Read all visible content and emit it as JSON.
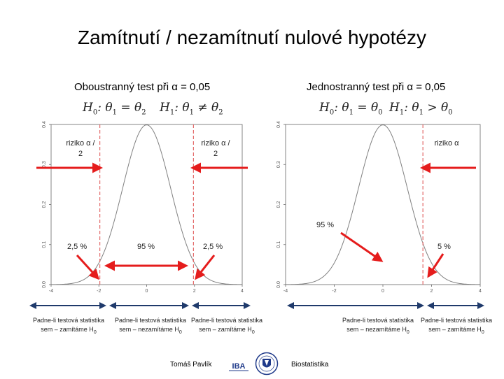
{
  "title": "Zamítnutí / nezamítnutí nulové hypotézy",
  "left": {
    "subtitle": "Oboustranný test při α = 0,05",
    "h0": {
      "name": "H",
      "idx": "0",
      "expr": ": θ",
      "t1": "1",
      "rel": " = θ",
      "t2": "2"
    },
    "h1": {
      "name": "H",
      "idx": "1",
      "expr": ": θ",
      "t1": "1",
      "rel": " ≠ θ",
      "t2": "2"
    },
    "risk_left": "riziko α / 2",
    "risk_right": "riziko α / 2",
    "pct_left": "2,5 %",
    "pct_mid": "95 %",
    "pct_right": "2,5 %",
    "cap_left": {
      "text": "Padne-li testová statistika sem – zamítáme H",
      "sub": "0"
    },
    "cap_mid": {
      "text": "Padne-li testová statistika sem – nezamítáme H",
      "sub": "0"
    },
    "cap_right": {
      "text": "Padne-li testová statistika sem – zamítáme H",
      "sub": "0"
    }
  },
  "right": {
    "subtitle": "Jednostranný test při α = 0,05",
    "h0": {
      "name": "H",
      "idx": "0",
      "expr": ": θ",
      "t1": "1",
      "rel": " = θ",
      "t2": "0"
    },
    "h1": {
      "name": "H",
      "idx": "1",
      "expr": ": θ",
      "t1": "1",
      "rel": " > θ",
      "t2": "0"
    },
    "risk": "riziko α",
    "pct_95": "95 %",
    "pct_5": "5 %",
    "cap_left": {
      "text": "Padne-li testová statistika sem – nezamítáme H",
      "sub": "0"
    },
    "cap_right": {
      "text": "Padne-li testová statistika sem – zamítáme H",
      "sub": "0"
    }
  },
  "chart_data": [
    {
      "type": "line",
      "series": [
        {
          "function": "standard normal density"
        }
      ],
      "xlim": [
        -4,
        4
      ],
      "ylim": [
        0,
        0.4
      ],
      "x_ticks": [
        "-4",
        "-2",
        "0",
        "2",
        "4"
      ],
      "y_ticks": [
        "0.0",
        "0.1",
        "0.2",
        "0.3",
        "0.4"
      ],
      "critical_values": [
        -1.96,
        1.96
      ]
    },
    {
      "type": "line",
      "series": [
        {
          "function": "standard normal density"
        }
      ],
      "xlim": [
        -4,
        4
      ],
      "ylim": [
        0,
        0.4
      ],
      "x_ticks": [
        "-4",
        "-2",
        "0",
        "2",
        "4"
      ],
      "y_ticks": [
        "0.0",
        "0.1",
        "0.2",
        "0.3",
        "0.4"
      ],
      "critical_values": [
        1.645
      ]
    }
  ],
  "footer": {
    "author": "Tomáš Pavlík",
    "logo": "IBA",
    "course": "Biostatistika"
  },
  "colors": {
    "arrow_red": "#e51c1c",
    "arrow_blue": "#1f3a6b",
    "critical_line": "#e36a6a",
    "curve": "#808080"
  }
}
